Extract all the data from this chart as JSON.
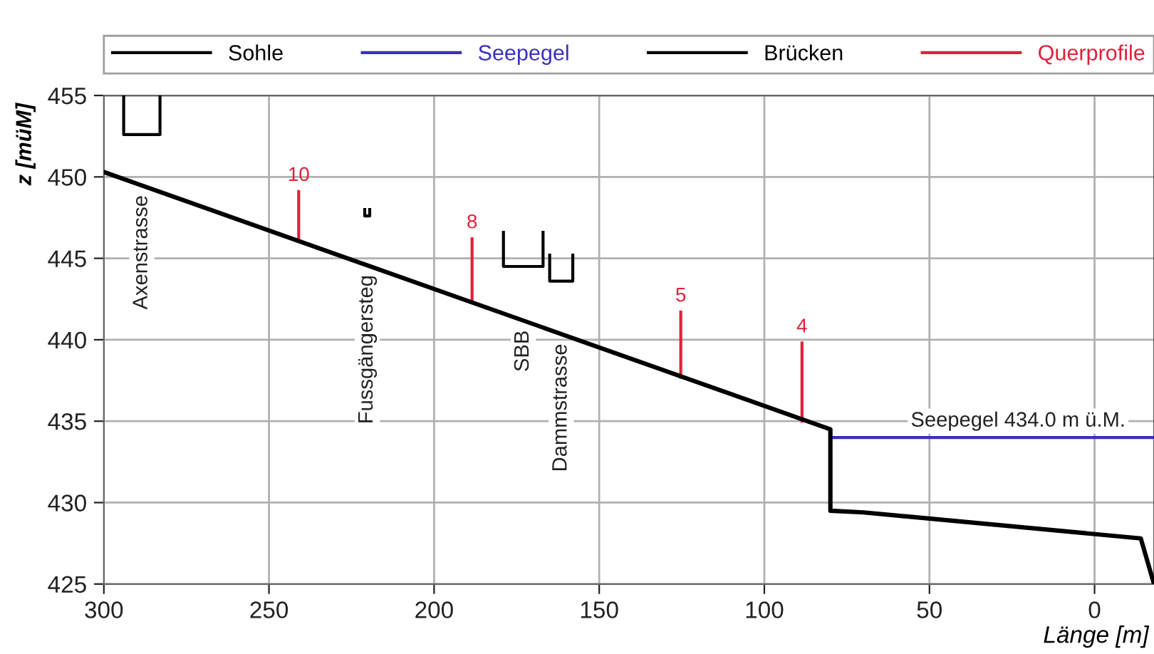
{
  "chart_data": {
    "type": "line",
    "xlabel": "Länge [m]",
    "ylabel": "z [müM]",
    "xlim": [
      300,
      -18
    ],
    "ylim": [
      425,
      455
    ],
    "xticks": [
      300,
      250,
      200,
      150,
      100,
      50,
      0
    ],
    "yticks": [
      425,
      430,
      435,
      440,
      445,
      450,
      455
    ],
    "grid": true,
    "legend": "top",
    "line_style": "solid",
    "marker": "none",
    "series": [
      {
        "name": "Sohle",
        "color": "#000000",
        "x": [
          300,
          80,
          80,
          70,
          -14,
          -18
        ],
        "values": [
          450.3,
          434.5,
          429.5,
          429.4,
          427.8,
          425
        ]
      },
      {
        "name": "Seepegel",
        "color": "#3a2fc0",
        "x": [
          80,
          -18
        ],
        "values": [
          434.0,
          434.0
        ]
      },
      {
        "name": "Brücken",
        "color": "#000000",
        "x": [
          294,
          294,
          283,
          283
        ],
        "values": [
          455,
          452.6,
          452.6,
          455
        ]
      },
      {
        "color": "#000000",
        "x": [
          221,
          221,
          219.5,
          219.5
        ],
        "values": [
          448.0,
          447.6,
          447.6,
          448.0
        ]
      },
      {
        "color": "#000000",
        "x": [
          179,
          179,
          167,
          167
        ],
        "values": [
          446.6,
          444.5,
          444.5,
          446.6
        ]
      },
      {
        "color": "#000000",
        "x": [
          165,
          165,
          158,
          158
        ],
        "values": [
          445.2,
          443.6,
          443.6,
          445.2
        ]
      },
      {
        "name": "Querprofile",
        "color": "#e0203a",
        "x": [
          241,
          241
        ],
        "values": [
          446.1,
          449.1
        ]
      },
      {
        "color": "#e0203a",
        "x": [
          188.5,
          188.5
        ],
        "values": [
          442.3,
          446.2
        ]
      },
      {
        "color": "#e0203a",
        "x": [
          125.3,
          125.3
        ],
        "values": [
          437.7,
          441.7
        ]
      },
      {
        "color": "#e0203a",
        "x": [
          88.6,
          88.6
        ],
        "values": [
          435.0,
          439.8
        ]
      }
    ],
    "annotations": [
      "Axenstrasse",
      "Fussgängersteg",
      "SBB",
      "Dammstrasse",
      "Seepegel 434.0 m ü.M.",
      {
        "text": "10",
        "x": 241,
        "y": 449.1
      },
      {
        "text": "8",
        "x": 188.5,
        "y": 446.2
      },
      {
        "text": "5",
        "x": 125.3,
        "y": 441.7
      },
      {
        "text": "4",
        "x": 88.6,
        "y": 439.8
      }
    ]
  }
}
